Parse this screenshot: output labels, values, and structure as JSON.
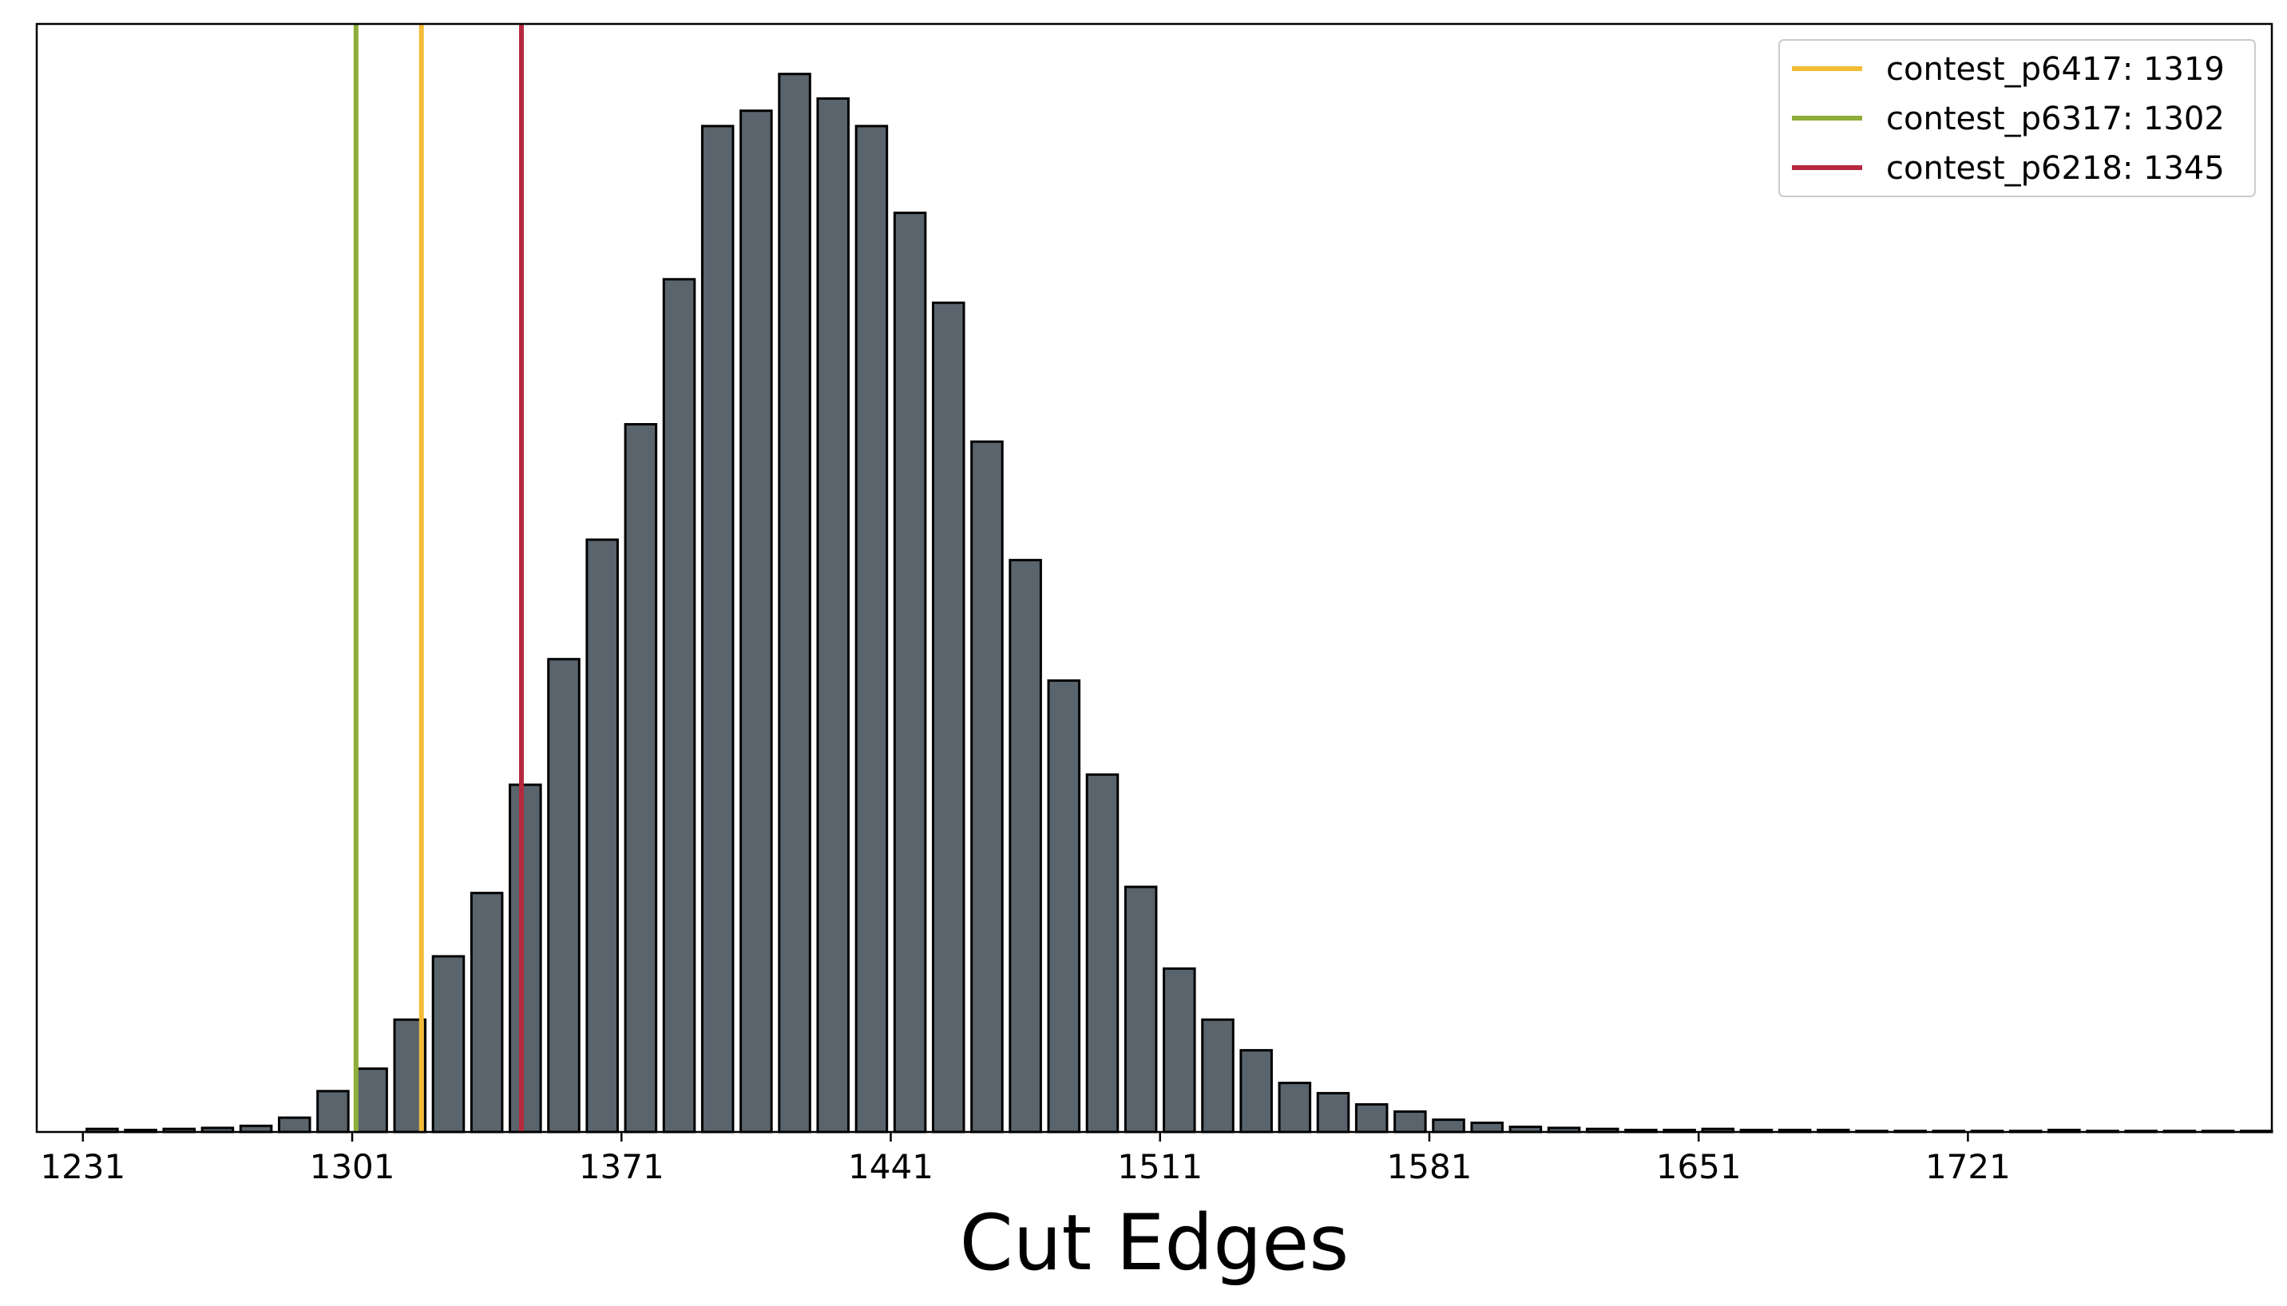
{
  "chart_data": {
    "type": "bar",
    "xlabel": "Cut Edges",
    "ylabel": "",
    "title": "",
    "x_ticks": [
      1231,
      1301,
      1371,
      1441,
      1511,
      1581,
      1651,
      1721
    ],
    "bin_width": 10,
    "bin_starts": [
      1231,
      1241,
      1251,
      1261,
      1271,
      1281,
      1291,
      1301,
      1311,
      1321,
      1331,
      1341,
      1351,
      1361,
      1371,
      1381,
      1391,
      1401,
      1411,
      1421,
      1431,
      1441,
      1451,
      1461,
      1471,
      1481,
      1491,
      1501,
      1511,
      1521,
      1531,
      1541,
      1551,
      1561,
      1571,
      1581,
      1591,
      1601,
      1611,
      1621,
      1631,
      1641,
      1651,
      1661,
      1671,
      1681,
      1691,
      1701,
      1711,
      1721,
      1731,
      1741,
      1751,
      1761,
      1771,
      1781,
      1791
    ],
    "values": [
      3,
      2,
      3,
      4,
      6,
      14,
      40,
      62,
      110,
      172,
      234,
      340,
      463,
      580,
      693,
      835,
      985,
      1000,
      1036,
      1012,
      985,
      900,
      812,
      676,
      560,
      442,
      350,
      240,
      160,
      110,
      80,
      48,
      38,
      27,
      20,
      12,
      9,
      5,
      4,
      3,
      2,
      2,
      3,
      2,
      2,
      2,
      1,
      1,
      1,
      1,
      1,
      2,
      1,
      1,
      1,
      1,
      1
    ],
    "ylim": [
      0,
      1085
    ],
    "xlim": [
      1219,
      1800
    ],
    "bar_color": "#5a646d",
    "bar_edge_color": "#000000",
    "vlines": [
      {
        "label": "contest_p6417: 1319",
        "x": 1319,
        "color": "#f2bc35"
      },
      {
        "label": "contest_p6317: 1302",
        "x": 1302,
        "color": "#8fad3b"
      },
      {
        "label": "contest_p6218: 1345",
        "x": 1345,
        "color": "#b5283e"
      }
    ],
    "legend_position": "top-right",
    "grid": false
  }
}
